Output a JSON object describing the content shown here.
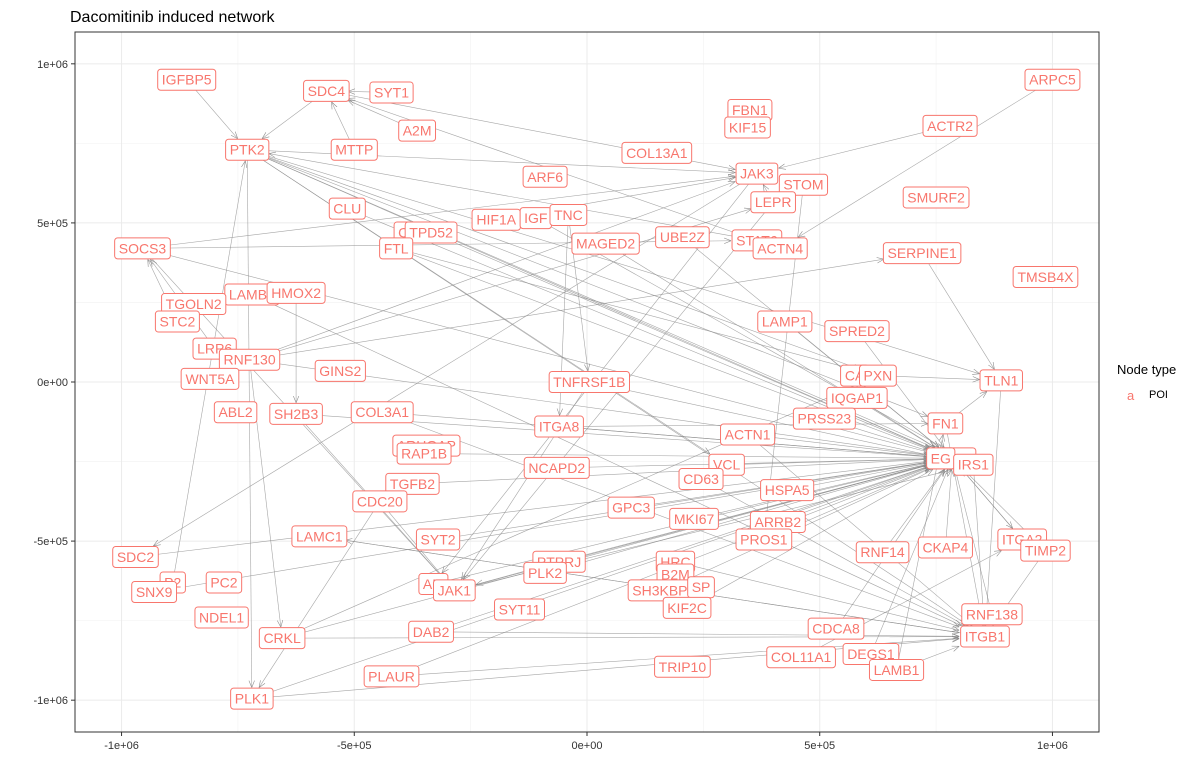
{
  "chart_data": {
    "type": "network",
    "title": "Dacomitinib induced network",
    "xlim": [
      -1100000,
      1100000
    ],
    "ylim": [
      -1100000,
      1100000
    ],
    "x_ticks": [
      -1000000,
      -500000,
      0,
      500000,
      1000000
    ],
    "x_tick_labels": [
      "-1e+06",
      "-5e+05",
      "0e+00",
      "5e+05",
      "1e+06"
    ],
    "y_ticks": [
      -1000000,
      -500000,
      0,
      500000,
      1000000
    ],
    "y_tick_labels": [
      "-1e+06",
      "-5e+05",
      "0e+00",
      "5e+05",
      "1e+06"
    ],
    "grid": true,
    "legend": {
      "title": "Node type",
      "key_glyph": "a",
      "entries": [
        "POI"
      ],
      "placement": "right",
      "color": "#F8766D"
    },
    "node_color": "#F8766D",
    "edge_color": "#888888",
    "nodes": [
      {
        "label": "IGFBP5",
        "x": -860000,
        "y": 950000
      },
      {
        "label": "SDC4",
        "x": -560000,
        "y": 915000
      },
      {
        "label": "SYT1",
        "x": -420000,
        "y": 910000
      },
      {
        "label": "ARPC5",
        "x": 1000000,
        "y": 950000
      },
      {
        "label": "FBN1",
        "x": 350000,
        "y": 855000
      },
      {
        "label": "KIF15",
        "x": 345000,
        "y": 800000
      },
      {
        "label": "ACTR2",
        "x": 780000,
        "y": 805000
      },
      {
        "label": "A2M",
        "x": -365000,
        "y": 790000
      },
      {
        "label": "PTK2",
        "x": -730000,
        "y": 730000
      },
      {
        "label": "MTTP",
        "x": -500000,
        "y": 730000
      },
      {
        "label": "COL13A1",
        "x": 150000,
        "y": 720000
      },
      {
        "label": "ARF6",
        "x": -90000,
        "y": 645000
      },
      {
        "label": "JAK3",
        "x": 365000,
        "y": 655000
      },
      {
        "label": "STOM",
        "x": 465000,
        "y": 620000
      },
      {
        "label": "SMURF2",
        "x": 750000,
        "y": 580000
      },
      {
        "label": "LEPR",
        "x": 400000,
        "y": 565000
      },
      {
        "label": "CLU",
        "x": -515000,
        "y": 545000
      },
      {
        "label": "HIF1A",
        "x": -195000,
        "y": 510000
      },
      {
        "label": "IGF",
        "x": -110000,
        "y": 515000
      },
      {
        "label": "TNC",
        "x": -40000,
        "y": 525000
      },
      {
        "label": "C",
        "x": -395000,
        "y": 470000
      },
      {
        "label": "TPD52",
        "x": -335000,
        "y": 470000
      },
      {
        "label": "UBE2Z",
        "x": 205000,
        "y": 455000
      },
      {
        "label": "STAT6",
        "x": 365000,
        "y": 445000
      },
      {
        "label": "MAGED2",
        "x": 40000,
        "y": 435000
      },
      {
        "label": "ACTN4",
        "x": 415000,
        "y": 420000
      },
      {
        "label": "SOCS3",
        "x": -955000,
        "y": 420000
      },
      {
        "label": "FTL",
        "x": -410000,
        "y": 420000
      },
      {
        "label": "SERPINE1",
        "x": 720000,
        "y": 405000
      },
      {
        "label": "TMSB4X",
        "x": 985000,
        "y": 330000
      },
      {
        "label": "LAMB2",
        "x": -720000,
        "y": 275000
      },
      {
        "label": "HMOX2",
        "x": -625000,
        "y": 280000
      },
      {
        "label": "TGOLN2",
        "x": -845000,
        "y": 245000
      },
      {
        "label": "STC2",
        "x": -880000,
        "y": 190000
      },
      {
        "label": "LAMP1",
        "x": 425000,
        "y": 190000
      },
      {
        "label": "SPRED2",
        "x": 580000,
        "y": 160000
      },
      {
        "label": "LRP6",
        "x": -800000,
        "y": 105000
      },
      {
        "label": "RNF130",
        "x": -725000,
        "y": 70000
      },
      {
        "label": "GINS2",
        "x": -530000,
        "y": 35000
      },
      {
        "label": "WNT5A",
        "x": -810000,
        "y": 10000
      },
      {
        "label": "CA",
        "x": 575000,
        "y": 20000
      },
      {
        "label": "PXN",
        "x": 625000,
        "y": 20000
      },
      {
        "label": "TNFRSF1B",
        "x": 5000,
        "y": 0
      },
      {
        "label": "TLN1",
        "x": 890000,
        "y": 5000
      },
      {
        "label": "IQGAP1",
        "x": 580000,
        "y": -50000
      },
      {
        "label": "ABL2",
        "x": -755000,
        "y": -95000
      },
      {
        "label": "SH2B3",
        "x": -625000,
        "y": -100000
      },
      {
        "label": "COL3A1",
        "x": -440000,
        "y": -95000
      },
      {
        "label": "PRSS23",
        "x": 510000,
        "y": -115000
      },
      {
        "label": "FN1",
        "x": 770000,
        "y": -130000
      },
      {
        "label": "ITGA8",
        "x": -60000,
        "y": -140000
      },
      {
        "label": "ACTN1",
        "x": 345000,
        "y": -165000
      },
      {
        "label": "ARHGAP",
        "x": -345000,
        "y": -200000
      },
      {
        "label": "RAP1B",
        "x": -350000,
        "y": -225000
      },
      {
        "label": "EGFR",
        "x": 785000,
        "y": -240000
      },
      {
        "label": "EG",
        "x": 760000,
        "y": -240000
      },
      {
        "label": "IRS1",
        "x": 830000,
        "y": -260000
      },
      {
        "label": "NCAPD2",
        "x": -65000,
        "y": -270000
      },
      {
        "label": "VCL",
        "x": 300000,
        "y": -260000
      },
      {
        "label": "CD63",
        "x": 245000,
        "y": -305000
      },
      {
        "label": "TGFB2",
        "x": -375000,
        "y": -320000
      },
      {
        "label": "HSPA5",
        "x": 430000,
        "y": -340000
      },
      {
        "label": "CDC20",
        "x": -445000,
        "y": -375000
      },
      {
        "label": "GPC3",
        "x": 95000,
        "y": -395000
      },
      {
        "label": "MKI67",
        "x": 230000,
        "y": -430000
      },
      {
        "label": "ARRB2",
        "x": 410000,
        "y": -440000
      },
      {
        "label": "LAMC1",
        "x": -575000,
        "y": -485000
      },
      {
        "label": "SYT2",
        "x": -320000,
        "y": -495000
      },
      {
        "label": "PROS1",
        "x": 380000,
        "y": -495000
      },
      {
        "label": "CKAP4",
        "x": 770000,
        "y": -520000
      },
      {
        "label": "ITGA2",
        "x": 935000,
        "y": -495000
      },
      {
        "label": "TIMP2",
        "x": 985000,
        "y": -530000
      },
      {
        "label": "RNF14",
        "x": 635000,
        "y": -535000
      },
      {
        "label": "SDC2",
        "x": -970000,
        "y": -550000
      },
      {
        "label": "PTPRJ",
        "x": -60000,
        "y": -565000
      },
      {
        "label": "PLK2",
        "x": -90000,
        "y": -600000
      },
      {
        "label": "HRC",
        "x": 190000,
        "y": -565000
      },
      {
        "label": "PC2",
        "x": -780000,
        "y": -630000
      },
      {
        "label": "P2",
        "x": -890000,
        "y": -630000
      },
      {
        "label": "SNX9",
        "x": -930000,
        "y": -660000
      },
      {
        "label": "AM",
        "x": -330000,
        "y": -635000
      },
      {
        "label": "JAK1",
        "x": -285000,
        "y": -655000
      },
      {
        "label": "B2M",
        "x": 190000,
        "y": -605000
      },
      {
        "label": "SH3KBP1",
        "x": 165000,
        "y": -655000
      },
      {
        "label": "SP",
        "x": 245000,
        "y": -645000
      },
      {
        "label": "RNF138",
        "x": 870000,
        "y": -730000
      },
      {
        "label": "NDEL1",
        "x": -785000,
        "y": -740000
      },
      {
        "label": "SYT11",
        "x": -145000,
        "y": -715000
      },
      {
        "label": "KIF2C",
        "x": 215000,
        "y": -710000
      },
      {
        "label": "ITGB1",
        "x": 855000,
        "y": -800000
      },
      {
        "label": "CDCA8",
        "x": 535000,
        "y": -775000
      },
      {
        "label": "CRKL",
        "x": -655000,
        "y": -805000
      },
      {
        "label": "DAB2",
        "x": -335000,
        "y": -785000
      },
      {
        "label": "COL11A1",
        "x": 460000,
        "y": -865000
      },
      {
        "label": "DEGS1",
        "x": 610000,
        "y": -855000
      },
      {
        "label": "TRIP10",
        "x": 205000,
        "y": -895000
      },
      {
        "label": "LAMB1",
        "x": 665000,
        "y": -905000
      },
      {
        "label": "PLAUR",
        "x": -420000,
        "y": -925000
      },
      {
        "label": "PLK1",
        "x": -720000,
        "y": -995000
      }
    ],
    "edges": [
      [
        "SDC4",
        "PTK2"
      ],
      [
        "SDC4",
        "JAK3"
      ],
      [
        "SYT1",
        "SDC4"
      ],
      [
        "MTTP",
        "SDC4"
      ],
      [
        "A2M",
        "SDC4"
      ],
      [
        "IGFBP5",
        "PTK2"
      ],
      [
        "ACTN4",
        "SDC4"
      ],
      [
        "PTK2",
        "EGFR"
      ],
      [
        "PTK2",
        "PXN"
      ],
      [
        "PTK2",
        "TLN1"
      ],
      [
        "PTK2",
        "FN1"
      ],
      [
        "PTK2",
        "IRS1"
      ],
      [
        "PTK2",
        "JAK3"
      ],
      [
        "PTK2",
        "ITGB1"
      ],
      [
        "PTK2",
        "VCL"
      ],
      [
        "PTK2",
        "PLK1"
      ],
      [
        "STAT6",
        "PTK2"
      ],
      [
        "CLU",
        "EGFR"
      ],
      [
        "SOCS3",
        "JAK3"
      ],
      [
        "SOCS3",
        "EGFR"
      ],
      [
        "SOCS3",
        "STAT6"
      ],
      [
        "SOCS3",
        "JAK1"
      ],
      [
        "STC2",
        "SOCS3"
      ],
      [
        "LRP6",
        "SOCS3"
      ],
      [
        "RNF130",
        "JAK3"
      ],
      [
        "RNF130",
        "SERPINE1"
      ],
      [
        "RNF130",
        "LEPR"
      ],
      [
        "RNF130",
        "EGFR"
      ],
      [
        "RNF130",
        "CRKL"
      ],
      [
        "LAMB2",
        "ITGB1"
      ],
      [
        "HMOX2",
        "SH2B3"
      ],
      [
        "TPD52",
        "EGFR"
      ],
      [
        "FTL",
        "EGFR"
      ],
      [
        "FTL",
        "PXN"
      ],
      [
        "HIF1A",
        "JAK3"
      ],
      [
        "TNC",
        "ITGA8"
      ],
      [
        "TNC",
        "TNFRSF1B"
      ],
      [
        "IGF",
        "IRS1"
      ],
      [
        "MAGED2",
        "EGFR"
      ],
      [
        "UBE2Z",
        "EGFR"
      ],
      [
        "LEPR",
        "JAK1"
      ],
      [
        "LEPR",
        "JAK3"
      ],
      [
        "STOM",
        "PROS1"
      ],
      [
        "JAK3",
        "SDC2"
      ],
      [
        "JAK3",
        "AM"
      ],
      [
        "TNFRSF1B",
        "IRS1"
      ],
      [
        "TNFRSF1B",
        "JAK1"
      ],
      [
        "ITGA8",
        "FN1"
      ],
      [
        "ITGA8",
        "EGFR"
      ],
      [
        "SH2B3",
        "JAK1"
      ],
      [
        "SH2B3",
        "EGFR"
      ],
      [
        "COL3A1",
        "ITGB1"
      ],
      [
        "COL3A1",
        "EGFR"
      ],
      [
        "RAP1B",
        "EGFR"
      ],
      [
        "NCAPD2",
        "EGFR"
      ],
      [
        "VCL",
        "EGFR"
      ],
      [
        "HSPA5",
        "EGFR"
      ],
      [
        "CDC20",
        "PLK1"
      ],
      [
        "CDC20",
        "JAK1"
      ],
      [
        "GPC3",
        "EGFR"
      ],
      [
        "MKI67",
        "EGFR"
      ],
      [
        "ARRB2",
        "EGFR"
      ],
      [
        "LAMC1",
        "ITGB1"
      ],
      [
        "PROS1",
        "EGFR"
      ],
      [
        "SDC2",
        "EGFR"
      ],
      [
        "PTPRJ",
        "EGFR"
      ],
      [
        "PTPRJ",
        "JAK1"
      ],
      [
        "PLK2",
        "EGFR"
      ],
      [
        "JAK1",
        "EGFR"
      ],
      [
        "JAK1",
        "IRS1"
      ],
      [
        "AM",
        "EGFR"
      ],
      [
        "HRC",
        "ITGB1"
      ],
      [
        "SH3KBP1",
        "EGFR"
      ],
      [
        "KIF2C",
        "EGFR"
      ],
      [
        "RNF138",
        "EGFR"
      ],
      [
        "CRKL",
        "EGFR"
      ],
      [
        "CRKL",
        "PXN"
      ],
      [
        "CRKL",
        "ITGB1"
      ],
      [
        "DAB2",
        "ITGB1"
      ],
      [
        "DAB2",
        "EGFR"
      ],
      [
        "PLAUR",
        "ITGB1"
      ],
      [
        "PLAUR",
        "EGFR"
      ],
      [
        "PLK1",
        "EGFR"
      ],
      [
        "PLK1",
        "ITGB1"
      ],
      [
        "DEGS1",
        "EGFR"
      ],
      [
        "LAMB1",
        "ITGB1"
      ],
      [
        "LAMB1",
        "FN1"
      ],
      [
        "CDCA8",
        "EGFR"
      ],
      [
        "COL11A1",
        "ITGA2"
      ],
      [
        "CKAP4",
        "EGFR"
      ],
      [
        "TIMP2",
        "ITGB1"
      ],
      [
        "ITGA2",
        "EGFR"
      ],
      [
        "FN1",
        "ITGB1"
      ],
      [
        "FN1",
        "TLN1"
      ],
      [
        "IRS1",
        "ITGB1"
      ],
      [
        "TLN1",
        "ITGB1"
      ],
      [
        "PXN",
        "TLN1"
      ],
      [
        "IQGAP1",
        "EGFR"
      ],
      [
        "PRSS23",
        "EGFR"
      ],
      [
        "SPRED2",
        "EGFR"
      ],
      [
        "LAMP1",
        "EGFR"
      ],
      [
        "ACTN1",
        "EGFR"
      ],
      [
        "ACTN1",
        "ITGB1"
      ],
      [
        "ARPC5",
        "ACTN4"
      ],
      [
        "ACTR2",
        "JAK3"
      ],
      [
        "CD63",
        "ITGB1"
      ],
      [
        "TGFB2",
        "EGFR"
      ],
      [
        "SYT2",
        "EGFR"
      ],
      [
        "RNF14",
        "EGFR"
      ],
      [
        "SERPINE1",
        "TLN1"
      ],
      [
        "EGFR",
        "ITGA2"
      ],
      [
        "EGFR",
        "TIMP2"
      ],
      [
        "ITGB1",
        "LAMC1"
      ],
      [
        "SNX9",
        "EGFR"
      ],
      [
        "P2",
        "PTK2"
      ]
    ]
  }
}
